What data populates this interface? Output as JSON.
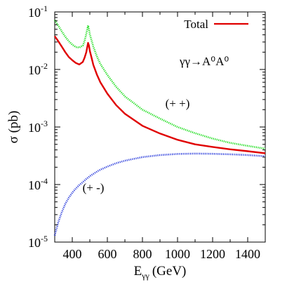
{
  "chart_data": {
    "type": "line",
    "title": "",
    "xlabel": "E",
    "xlabel_sub": "γγ",
    "xlabel_unit": "(GeV)",
    "ylabel": "σ (pb)",
    "xlim": [
      300,
      1500
    ],
    "ylim": [
      1e-05,
      0.1
    ],
    "yscale": "log",
    "x_ticks": [
      400,
      600,
      800,
      1000,
      1200,
      1400
    ],
    "y_ticks": [
      {
        "value": 1e-05,
        "base": "10",
        "exp": "-5"
      },
      {
        "value": 0.0001,
        "base": "10",
        "exp": "-4"
      },
      {
        "value": 0.001,
        "base": "10",
        "exp": "-3"
      },
      {
        "value": 0.01,
        "base": "10",
        "exp": "-2"
      },
      {
        "value": 0.1,
        "base": "10",
        "exp": "-1"
      }
    ],
    "grid": false,
    "legend": {
      "position": "top-right",
      "entries": [
        {
          "label": "Total",
          "series": "Total"
        }
      ]
    },
    "process_label": "γγ→A⁰A⁰",
    "annotations": [
      {
        "text": "(+ +)",
        "x": 1000,
        "y": 0.0022
      },
      {
        "text": "(+ -)",
        "x": 520,
        "y": 7.5e-05
      }
    ],
    "series": [
      {
        "name": "Total",
        "color": "#e00000",
        "style": "solid",
        "x": [
          300,
          320,
          340,
          360,
          380,
          400,
          420,
          440,
          460,
          470,
          480,
          490,
          495,
          500,
          510,
          520,
          540,
          560,
          600,
          650,
          700,
          800,
          900,
          1000,
          1100,
          1200,
          1300,
          1400,
          1500
        ],
        "y": [
          0.038,
          0.031,
          0.025,
          0.02,
          0.0165,
          0.0145,
          0.013,
          0.0122,
          0.0135,
          0.016,
          0.02,
          0.029,
          0.026,
          0.021,
          0.016,
          0.012,
          0.0082,
          0.006,
          0.0038,
          0.0024,
          0.0017,
          0.00105,
          0.00077,
          0.0006,
          0.0005,
          0.00045,
          0.00041,
          0.00038,
          0.00035
        ]
      },
      {
        "name": "",
        "color": "#22dd22",
        "style": "dotted",
        "x": [
          300,
          320,
          340,
          360,
          380,
          400,
          420,
          440,
          460,
          470,
          480,
          490,
          495,
          500,
          510,
          520,
          540,
          560,
          600,
          650,
          700,
          800,
          900,
          1000,
          1100,
          1200,
          1300,
          1400,
          1500
        ],
        "y": [
          0.072,
          0.058,
          0.046,
          0.037,
          0.031,
          0.027,
          0.0245,
          0.024,
          0.026,
          0.031,
          0.042,
          0.058,
          0.05,
          0.041,
          0.032,
          0.025,
          0.017,
          0.0125,
          0.008,
          0.005,
          0.0034,
          0.002,
          0.0014,
          0.001,
          0.00078,
          0.00063,
          0.00053,
          0.00047,
          0.00042
        ]
      },
      {
        "name": "",
        "color": "#3344dd",
        "style": "dotted",
        "x": [
          300,
          310,
          320,
          340,
          360,
          380,
          400,
          420,
          440,
          460,
          480,
          500,
          550,
          600,
          650,
          700,
          800,
          900,
          1000,
          1100,
          1200,
          1300,
          1400,
          1500
        ],
        "y": [
          1.3e-05,
          1.7e-05,
          2.2e-05,
          3.3e-05,
          4.6e-05,
          5.9e-05,
          7.2e-05,
          8.5e-05,
          9.8e-05,
          0.00011,
          0.000125,
          0.00014,
          0.000175,
          0.000205,
          0.000235,
          0.00026,
          0.0003,
          0.000325,
          0.00034,
          0.000345,
          0.000342,
          0.000335,
          0.000325,
          0.00031
        ]
      }
    ]
  }
}
